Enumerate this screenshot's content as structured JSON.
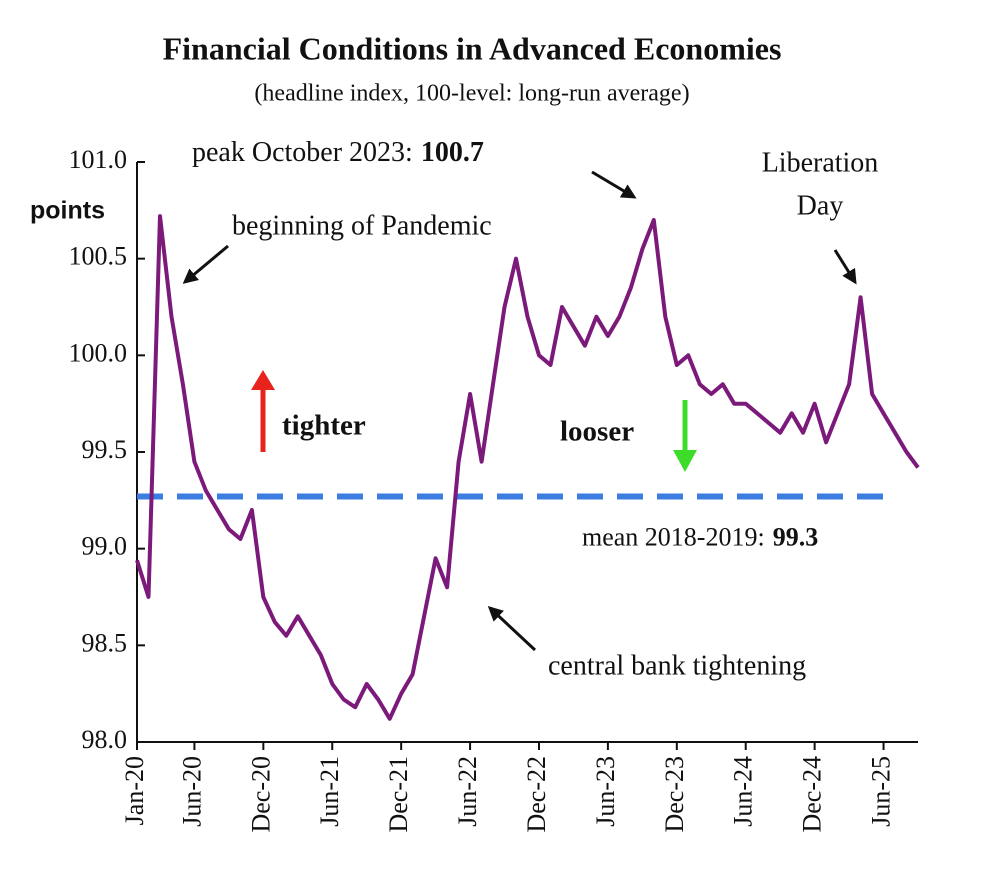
{
  "chart_data": {
    "type": "line",
    "title": "Financial Conditions in Advanced Economies",
    "subtitle": "(headline index, 100-level: long-run average)",
    "y_axis_label": "points",
    "x": [
      "2020-01",
      "2020-02",
      "2020-03",
      "2020-04",
      "2020-05",
      "2020-06",
      "2020-07",
      "2020-08",
      "2020-09",
      "2020-10",
      "2020-11",
      "2020-12",
      "2021-01",
      "2021-02",
      "2021-03",
      "2021-04",
      "2021-05",
      "2021-06",
      "2021-07",
      "2021-08",
      "2021-09",
      "2021-10",
      "2021-11",
      "2021-12",
      "2022-01",
      "2022-02",
      "2022-03",
      "2022-04",
      "2022-05",
      "2022-06",
      "2022-07",
      "2022-08",
      "2022-09",
      "2022-10",
      "2022-11",
      "2022-12",
      "2023-01",
      "2023-02",
      "2023-03",
      "2023-04",
      "2023-05",
      "2023-06",
      "2023-07",
      "2023-08",
      "2023-09",
      "2023-10",
      "2023-11",
      "2023-12",
      "2024-01",
      "2024-02",
      "2024-03",
      "2024-04",
      "2024-05",
      "2024-06",
      "2024-07",
      "2024-08",
      "2024-09",
      "2024-10",
      "2024-11",
      "2024-12",
      "2025-01",
      "2025-02",
      "2025-03",
      "2025-04",
      "2025-05",
      "2025-06",
      "2025-07",
      "2025-08",
      "2025-09"
    ],
    "series": [
      {
        "name": "headline index",
        "color": "#7b1a7b",
        "values": [
          98.94,
          98.75,
          100.72,
          100.2,
          99.85,
          99.45,
          99.3,
          99.2,
          99.1,
          99.05,
          99.2,
          98.75,
          98.62,
          98.55,
          98.65,
          98.55,
          98.45,
          98.3,
          98.22,
          98.18,
          98.3,
          98.22,
          98.12,
          98.25,
          98.35,
          98.65,
          98.95,
          98.8,
          99.45,
          99.8,
          99.45,
          99.85,
          100.25,
          100.5,
          100.2,
          100.0,
          99.95,
          100.25,
          100.15,
          100.05,
          100.2,
          100.1,
          100.2,
          100.35,
          100.55,
          100.7,
          100.2,
          99.95,
          100.0,
          99.85,
          99.8,
          99.85,
          99.75,
          99.75,
          99.7,
          99.65,
          99.6,
          99.7,
          99.6,
          99.75,
          99.55,
          99.7,
          99.85,
          100.3,
          99.8,
          99.7,
          99.6,
          99.5,
          99.42
        ]
      }
    ],
    "xlim": [
      "2020-01",
      "2025-09"
    ],
    "xticks": [
      {
        "value": "2020-01",
        "label": "Jan-20"
      },
      {
        "value": "2020-06",
        "label": "Jun-20"
      },
      {
        "value": "2020-12",
        "label": "Dec-20"
      },
      {
        "value": "2021-06",
        "label": "Jun-21"
      },
      {
        "value": "2021-12",
        "label": "Dec-21"
      },
      {
        "value": "2022-06",
        "label": "Jun-22"
      },
      {
        "value": "2022-12",
        "label": "Dec-22"
      },
      {
        "value": "2023-06",
        "label": "Jun-23"
      },
      {
        "value": "2023-12",
        "label": "Dec-23"
      },
      {
        "value": "2024-06",
        "label": "Jun-24"
      },
      {
        "value": "2024-12",
        "label": "Dec-24"
      },
      {
        "value": "2025-06",
        "label": "Jun-25"
      }
    ],
    "ylim": [
      98,
      101
    ],
    "yticks": [
      {
        "value": 98,
        "label": "98.0"
      },
      98.5,
      {
        "value": 99,
        "label": "99.0"
      },
      99.5,
      {
        "value": 100,
        "label": "100.0"
      },
      100.5,
      {
        "value": 101,
        "label": "101.0"
      }
    ],
    "reference_line": {
      "value": 99.27,
      "label": "mean 2018-2019:",
      "value_label": "99.3",
      "color": "#3b7de0"
    },
    "annotations": [
      {
        "text": "beginning of Pandemic"
      },
      {
        "text": "peak October 2023:",
        "value_label": "100.7"
      },
      {
        "text": [
          "Liberation",
          "Day"
        ]
      },
      {
        "text": "central bank tightening"
      },
      {
        "text": "tighter",
        "color": "#e8231c"
      },
      {
        "text": "looser",
        "color": "#3ddc2a"
      }
    ]
  }
}
